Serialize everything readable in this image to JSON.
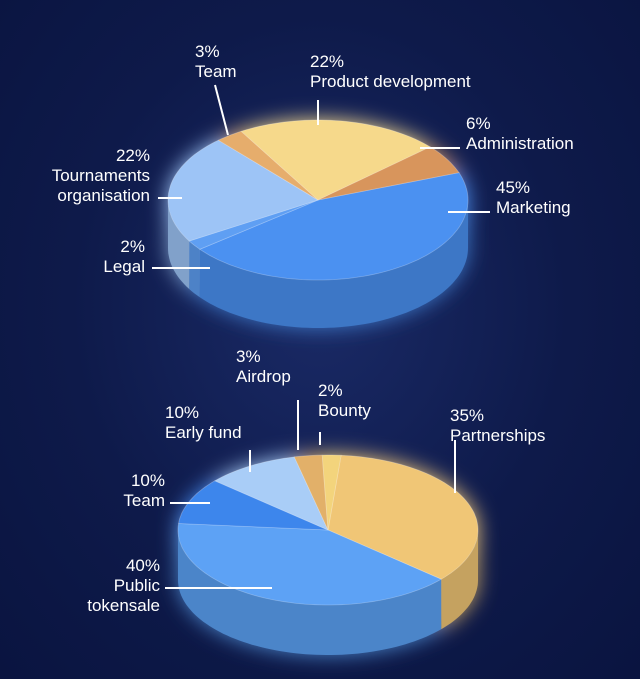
{
  "chart_data": [
    {
      "type": "pie",
      "categories": [
        "Marketing",
        "Legal",
        "Tournaments organisation",
        "Team",
        "Product development",
        "Administration"
      ],
      "values": [
        45,
        2,
        22,
        3,
        22,
        6
      ],
      "value_labels": [
        "45%",
        "2%",
        "22%",
        "3%",
        "22%",
        "6%"
      ],
      "colors": [
        "#4b91f1",
        "#5f9ff3",
        "#9dc4f6",
        "#e6ad6c",
        "#f6d98b",
        "#d8955b"
      ]
    },
    {
      "type": "pie",
      "categories": [
        "Partnerships",
        "Public tokensale",
        "Team",
        "Early fund",
        "Airdrop",
        "Bounty"
      ],
      "values": [
        35,
        40,
        10,
        10,
        3,
        2
      ],
      "value_labels": [
        "35%",
        "40%",
        "10%",
        "10%",
        "3%",
        "2%"
      ],
      "colors": [
        "#f0c676",
        "#5da2f5",
        "#3e86ec",
        "#a9cdf7",
        "#e2b069",
        "#f3d47c"
      ]
    }
  ]
}
